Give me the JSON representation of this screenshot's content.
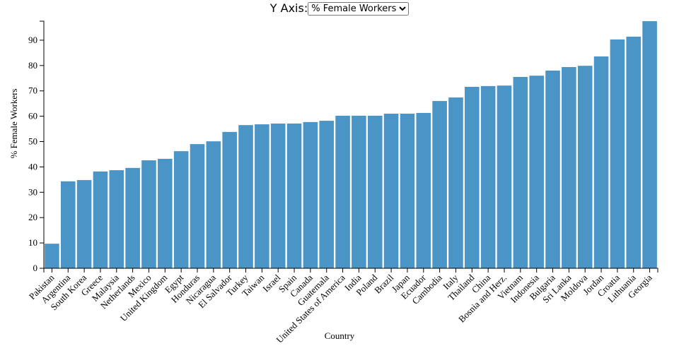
{
  "y_axis_control": {
    "label": "Y Axis:",
    "options": [
      "% Female Workers"
    ],
    "selected": "% Female Workers"
  },
  "chart_data": {
    "type": "bar",
    "x_label": "Country",
    "y_label": "% Female Workers",
    "color": "#4b94c6",
    "categories": [
      "Pakistan",
      "Argentina",
      "South Korea",
      "Greece",
      "Malaysia",
      "Netherlands",
      "Mexico",
      "United Kingdom",
      "Egypt",
      "Honduras",
      "Nicaragua",
      "El Salvador",
      "Turkey",
      "Taiwan",
      "Israel",
      "Spain",
      "Canada",
      "Guatemala",
      "United States of America",
      "India",
      "Poland",
      "Brazil",
      "Japan",
      "Ecuador",
      "Cambodia",
      "Italy",
      "Thailand",
      "China",
      "Bosnia and Herz.",
      "Vietnam",
      "Indonesia",
      "Bulgaria",
      "Sri Lanka",
      "Moldova",
      "Jordan",
      "Croatia",
      "Lithuania",
      "Georgia"
    ],
    "values": [
      9.7,
      34.3,
      34.8,
      38.2,
      38.7,
      39.6,
      42.6,
      43.2,
      46.2,
      49.0,
      50.1,
      53.8,
      56.5,
      56.8,
      57.1,
      57.1,
      57.7,
      58.2,
      60.2,
      60.2,
      60.2,
      61.0,
      61.0,
      61.3,
      66.0,
      67.4,
      71.6,
      71.9,
      72.1,
      75.5,
      76.0,
      78.0,
      79.4,
      79.9,
      83.6,
      90.3,
      91.4,
      97.5
    ],
    "ylim": [
      0,
      97.5
    ],
    "yticks": [
      0,
      10,
      20,
      30,
      40,
      50,
      60,
      70,
      80,
      90
    ]
  }
}
